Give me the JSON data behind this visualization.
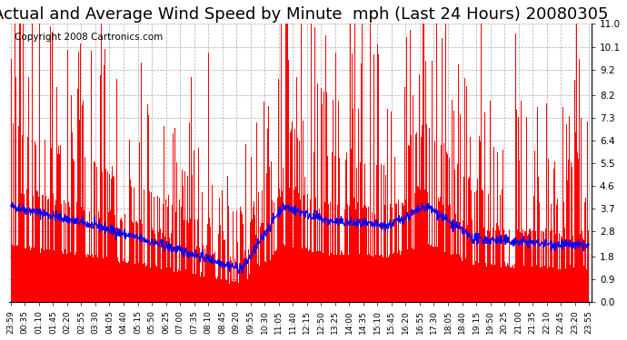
{
  "title": "Actual and Average Wind Speed by Minute  mph (Last 24 Hours) 20080305",
  "copyright_text": "Copyright 2008 Cartronics.com",
  "ylim": [
    0.0,
    11.0
  ],
  "yticks": [
    0.0,
    0.9,
    1.8,
    2.8,
    3.7,
    4.6,
    5.5,
    6.4,
    7.3,
    8.2,
    9.2,
    10.1,
    11.0
  ],
  "background_color": "#ffffff",
  "bar_color": "#ff0000",
  "line_color": "#0000ff",
  "grid_color": "#aaaaaa",
  "title_fontsize": 13,
  "copyright_fontsize": 7.5,
  "num_minutes": 1440,
  "x_tick_labels": [
    "23:59",
    "00:35",
    "01:10",
    "01:45",
    "02:20",
    "02:55",
    "03:30",
    "04:05",
    "04:40",
    "05:15",
    "05:50",
    "06:25",
    "07:00",
    "07:35",
    "08:10",
    "08:45",
    "09:20",
    "09:55",
    "10:30",
    "11:05",
    "11:40",
    "12:15",
    "12:50",
    "13:25",
    "14:00",
    "14:35",
    "15:10",
    "15:45",
    "16:20",
    "16:55",
    "17:30",
    "18:05",
    "18:40",
    "19:15",
    "19:50",
    "20:25",
    "21:00",
    "21:35",
    "22:10",
    "22:45",
    "23:20",
    "23:55"
  ]
}
